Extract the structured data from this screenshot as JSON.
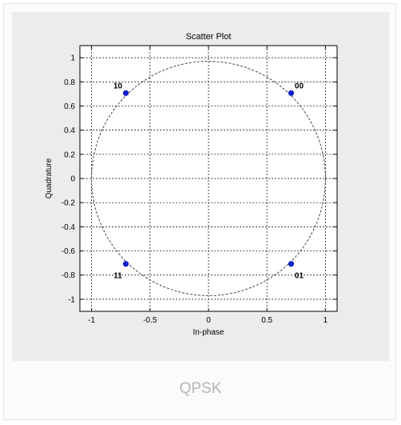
{
  "chart_data": {
    "type": "scatter",
    "title": "Scatter Plot",
    "xlabel": "In-phase",
    "ylabel": "Quadrature",
    "xlim": [
      -1.1,
      1.1
    ],
    "ylim": [
      -1.1,
      1.1
    ],
    "xticks": [
      -1,
      -0.5,
      0,
      0.5,
      1
    ],
    "yticks": [
      -1,
      -0.8,
      -0.6,
      -0.4,
      -0.2,
      0,
      0.2,
      0.4,
      0.6,
      0.8,
      1
    ],
    "xtick_labels": [
      "-1",
      "-0.5",
      "0",
      "0.5",
      "1"
    ],
    "ytick_labels": [
      "-1",
      "-0.8",
      "-0.6",
      "-0.4",
      "-0.2",
      "0",
      "0.2",
      "0.4",
      "0.6",
      "0.8",
      "1"
    ],
    "grid": true,
    "reference_circle_radius": 1,
    "points": [
      {
        "label": "00",
        "x": 0.707,
        "y": 0.707
      },
      {
        "label": "10",
        "x": -0.707,
        "y": 0.707
      },
      {
        "label": "11",
        "x": -0.707,
        "y": -0.707
      },
      {
        "label": "01",
        "x": 0.707,
        "y": -0.707
      }
    ],
    "point_color": "#1020c8"
  },
  "caption": "QPSK"
}
